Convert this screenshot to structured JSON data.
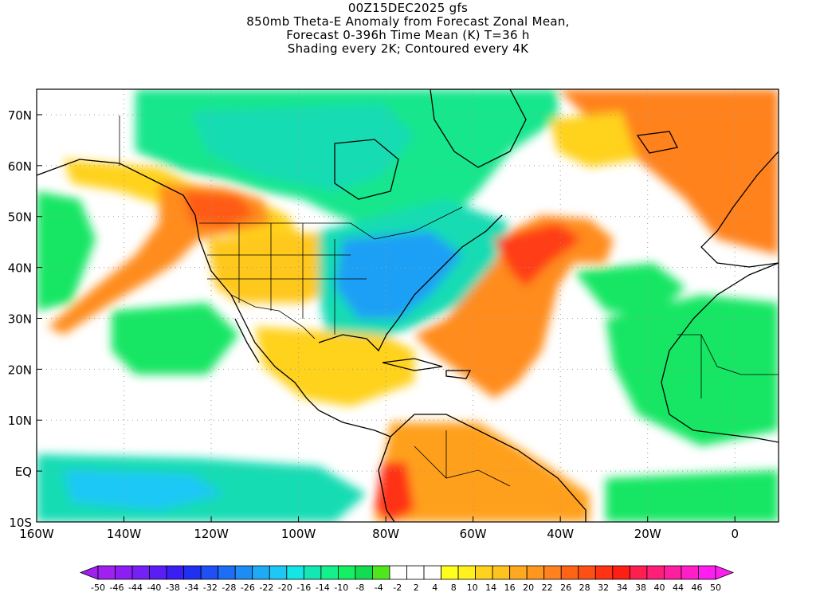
{
  "titles": [
    "00Z15DEC2025 gfs",
    "850mb Theta-E Anomaly from Forecast Zonal Mean,",
    "Forecast 0-396h Time Mean (K) T=36 h",
    "Shading every 2K; Contoured every 4K"
  ],
  "axes": {
    "lon_ticks": [
      {
        "label": "160W",
        "value": -160
      },
      {
        "label": "140W",
        "value": -140
      },
      {
        "label": "120W",
        "value": -120
      },
      {
        "label": "100W",
        "value": -100
      },
      {
        "label": "80W",
        "value": -80
      },
      {
        "label": "60W",
        "value": -60
      },
      {
        "label": "40W",
        "value": -40
      },
      {
        "label": "20W",
        "value": -20
      },
      {
        "label": "0",
        "value": 0
      }
    ],
    "lat_ticks": [
      {
        "label": "70N",
        "value": 70
      },
      {
        "label": "60N",
        "value": 60
      },
      {
        "label": "50N",
        "value": 50
      },
      {
        "label": "40N",
        "value": 40
      },
      {
        "label": "30N",
        "value": 30
      },
      {
        "label": "20N",
        "value": 20
      },
      {
        "label": "10N",
        "value": 10
      },
      {
        "label": "EQ",
        "value": 0
      },
      {
        "label": "10S",
        "value": -10
      }
    ],
    "lon_range": [
      -160,
      10
    ],
    "lat_range": [
      -10,
      75
    ],
    "grid": "dotted"
  },
  "colorbar": {
    "labels": [
      "-50",
      "-46",
      "-44",
      "-40",
      "-38",
      "-34",
      "-32",
      "-28",
      "-26",
      "-22",
      "-20",
      "-16",
      "-14",
      "-10",
      "-8",
      "-4",
      "-2",
      "2",
      "4",
      "8",
      "10",
      "14",
      "16",
      "20",
      "22",
      "26",
      "28",
      "32",
      "34",
      "38",
      "40",
      "44",
      "46",
      "50"
    ],
    "colors": [
      "#a020f0",
      "#8c1ef5",
      "#7520f5",
      "#5a1ef5",
      "#3a1ef5",
      "#2030f0",
      "#1e50f5",
      "#1e6ef5",
      "#1e8cf5",
      "#1eaaf5",
      "#1ec8f5",
      "#14e6e6",
      "#14e6b4",
      "#14f08c",
      "#14f064",
      "#14dc50",
      "#50e61e",
      "#ffffff",
      "#ffffff",
      "#ffffff",
      "#ffff1e",
      "#fff01e",
      "#ffd21e",
      "#ffc31e",
      "#ffaa1e",
      "#ff961e",
      "#ff821e",
      "#ff6414",
      "#ff5014",
      "#ff3214",
      "#ff1e14",
      "#ff1e50",
      "#ff1e78",
      "#ff1ea0",
      "#ff1ec8",
      "#ff1ef0"
    ],
    "left_arrow_color": "#a020f0",
    "right_arrow_color": "#ff1ef0"
  },
  "anomaly_regions": [
    {
      "name": "nw-us-warm-plume",
      "color": "#ff8c1e"
    },
    {
      "name": "eastern-us-cold-pool",
      "color": "#1e9ef5"
    },
    {
      "name": "central-atlantic-warm-plume",
      "color": "#ff6414"
    },
    {
      "name": "northeast-atlantic-warm",
      "color": "#ff821e"
    },
    {
      "name": "south-america-warm",
      "color": "#ff9a1e"
    },
    {
      "name": "canada-cool",
      "color": "#14dca0"
    },
    {
      "name": "north-africa-cool",
      "color": "#14e664"
    },
    {
      "name": "east-pacific-cool",
      "color": "#14e6c8"
    }
  ]
}
